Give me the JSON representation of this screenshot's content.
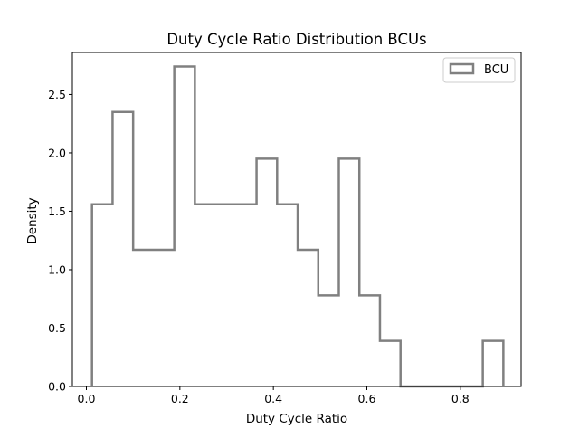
{
  "chart_data": {
    "type": "histogram",
    "title": "Duty Cycle Ratio Distribution BCUs",
    "xlabel": "Duty Cycle Ratio",
    "ylabel": "Density",
    "xlim": [
      -0.03,
      0.93
    ],
    "ylim": [
      0,
      2.86
    ],
    "xticks": [
      0.0,
      0.2,
      0.4,
      0.6,
      0.8
    ],
    "xtick_labels": [
      "0.0",
      "0.2",
      "0.4",
      "0.6",
      "0.8"
    ],
    "yticks": [
      0.0,
      0.5,
      1.0,
      1.5,
      2.0,
      2.5
    ],
    "ytick_labels": [
      "0.0",
      "0.5",
      "1.0",
      "1.5",
      "2.0",
      "2.5"
    ],
    "histtype": "step",
    "bin_edges": [
      0.012,
      0.056,
      0.1,
      0.144,
      0.188,
      0.232,
      0.276,
      0.32,
      0.364,
      0.408,
      0.452,
      0.496,
      0.54,
      0.584,
      0.628,
      0.672,
      0.716,
      0.76,
      0.804,
      0.848,
      0.892
    ],
    "series": [
      {
        "name": "BCU",
        "color": "#808080",
        "values": [
          1.56,
          2.35,
          1.17,
          1.17,
          2.74,
          1.56,
          1.56,
          1.56,
          1.95,
          1.56,
          1.17,
          0.78,
          1.95,
          0.78,
          0.39,
          0.0,
          0.0,
          0.0,
          0.0,
          0.39
        ]
      }
    ],
    "legend": {
      "position": "top-right",
      "entries": [
        "BCU"
      ]
    },
    "grid": false
  }
}
